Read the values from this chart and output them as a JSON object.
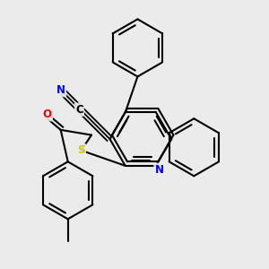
{
  "bg_color": "#ebebeb",
  "bond_color": "#000000",
  "bond_width": 1.5,
  "atom_colors": {
    "N": "#0000ff",
    "S": "#cccc00",
    "O": "#ff0000",
    "C": "#000000"
  },
  "font_size": 8.5
}
